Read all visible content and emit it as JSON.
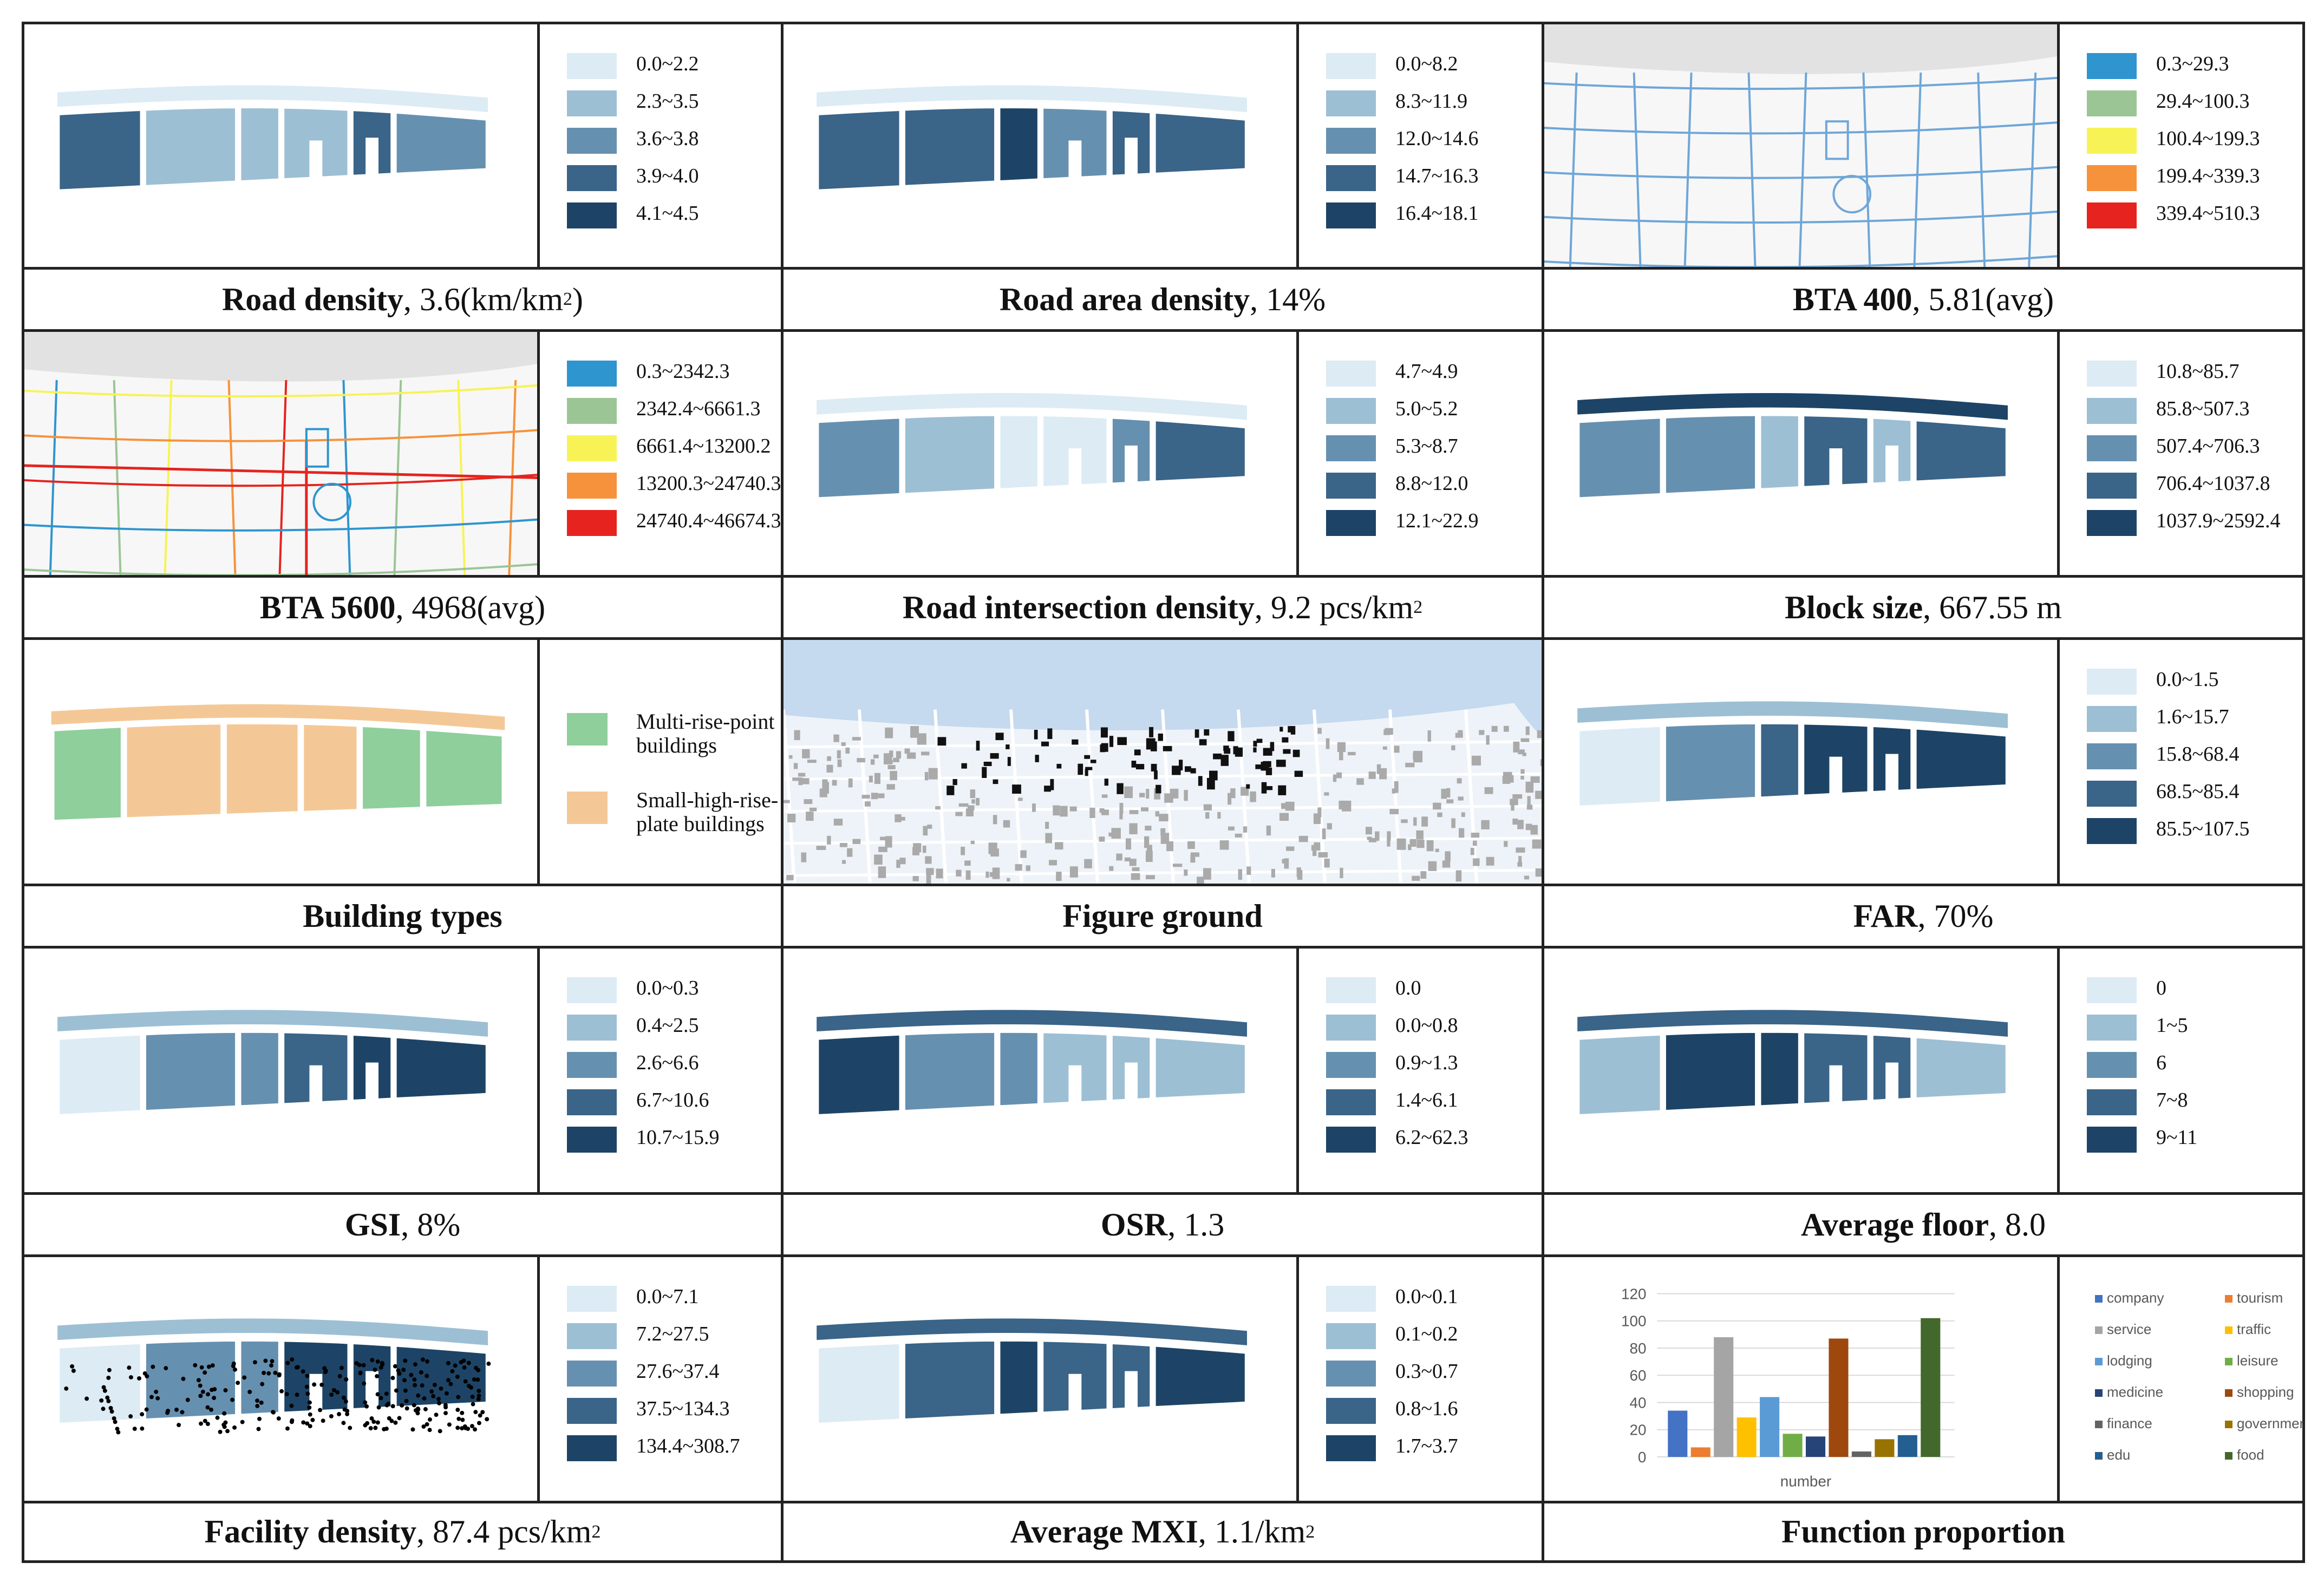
{
  "colors": {
    "blue1": "#dcebf4",
    "blue2": "#9cbfd4",
    "blue3": "#6690b0",
    "blue4": "#3a6488",
    "blue5": "#1d4466",
    "bta1": "#2f95cf",
    "bta2": "#9cc596",
    "bta3": "#f7f356",
    "bta4": "#f7923c",
    "bta5": "#e6231e",
    "green": "#8ecf9b",
    "orange": "#f4c896"
  },
  "panels": [
    {
      "id": "road-density",
      "title": "Road density",
      "value": ", 3.6(km/km",
      "sup": "2",
      "after": ")",
      "legend": [
        "0.0~2.2",
        "2.3~3.5",
        "3.6~3.8",
        "3.9~4.0",
        "4.1~4.5"
      ],
      "palette": "blue"
    },
    {
      "id": "road-area-density",
      "title": "Road area density",
      "value": ", 14%",
      "sup": "",
      "after": "",
      "legend": [
        "0.0~8.2",
        "8.3~11.9",
        "12.0~14.6",
        "14.7~16.3",
        "16.4~18.1"
      ],
      "palette": "blue"
    },
    {
      "id": "bta-400",
      "title": "BTA 400",
      "value": ", 5.81(avg)",
      "sup": "",
      "after": "",
      "legend": [
        "0.3~29.3",
        "29.4~100.3",
        "100.4~199.3",
        "199.4~339.3",
        "339.4~510.3"
      ],
      "palette": "bta"
    },
    {
      "id": "bta-5600",
      "title": "BTA 5600",
      "value": ", 4968(avg)",
      "sup": "",
      "after": "",
      "legend": [
        "0.3~2342.3",
        "2342.4~6661.3",
        "6661.4~13200.2",
        "13200.3~24740.3",
        "24740.4~46674.3"
      ],
      "palette": "bta"
    },
    {
      "id": "road-intersection-density",
      "title": "Road intersection density",
      "value": ", 9.2 pcs/km",
      "sup": "2",
      "after": "",
      "legend": [
        "4.7~4.9",
        "5.0~5.2",
        "5.3~8.7",
        "8.8~12.0",
        "12.1~22.9"
      ],
      "palette": "blue"
    },
    {
      "id": "block-size",
      "title": "Block size",
      "value": ", 667.55 m",
      "sup": "",
      "after": "",
      "legend": [
        "10.8~85.7",
        "85.8~507.3",
        "507.4~706.3",
        "706.4~1037.8",
        "1037.9~2592.4"
      ],
      "palette": "blue"
    },
    {
      "id": "building-types",
      "title": "Building types",
      "value": "",
      "sup": "",
      "after": "",
      "legend": [
        "Multi-rise-point buildings",
        "Small-high-rise-plate buildings"
      ],
      "palette": "types"
    },
    {
      "id": "figure-ground",
      "title": "Figure ground",
      "value": "",
      "sup": "",
      "after": "",
      "legend": [],
      "palette": "none"
    },
    {
      "id": "far",
      "title": "FAR",
      "value": ", 70%",
      "sup": "",
      "after": "",
      "legend": [
        "0.0~1.5",
        "1.6~15.7",
        "15.8~68.4",
        "68.5~85.4",
        "85.5~107.5"
      ],
      "palette": "blue"
    },
    {
      "id": "gsi",
      "title": "GSI",
      "value": ", 8%",
      "sup": "",
      "after": "",
      "legend": [
        "0.0~0.3",
        "0.4~2.5",
        "2.6~6.6",
        "6.7~10.6",
        "10.7~15.9"
      ],
      "palette": "blue"
    },
    {
      "id": "osr",
      "title": "OSR",
      "value": ", 1.3",
      "sup": "",
      "after": "",
      "legend": [
        "0.0",
        "0.0~0.8",
        "0.9~1.3",
        "1.4~6.1",
        "6.2~62.3"
      ],
      "palette": "blue"
    },
    {
      "id": "average-floor",
      "title": "Average floor",
      "value": ", 8.0",
      "sup": "",
      "after": "",
      "legend": [
        "0",
        "1~5",
        "6",
        "7~8",
        "9~11"
      ],
      "palette": "blue"
    },
    {
      "id": "facility-density",
      "title": "Facility density",
      "value": ", 87.4 pcs/km",
      "sup": "2",
      "after": "",
      "legend": [
        "0.0~7.1",
        "7.2~27.5",
        "27.6~37.4",
        "37.5~134.3",
        "134.4~308.7"
      ],
      "palette": "blue"
    },
    {
      "id": "average-mxi",
      "title": "Average MXI",
      "value": ", 1.1/km",
      "sup": "2",
      "after": "",
      "legend": [
        "0.0~0.1",
        "0.1~0.2",
        "0.3~0.7",
        "0.8~1.6",
        "1.7~3.7"
      ],
      "palette": "blue"
    },
    {
      "id": "function-proportion",
      "title": "Function proportion",
      "value": "",
      "sup": "",
      "after": "",
      "legend": [],
      "palette": "none"
    }
  ],
  "chart_data": {
    "type": "bar",
    "title": "",
    "xlabel": "number",
    "ylabel": "",
    "ylim": [
      0,
      120
    ],
    "yticks": [
      0,
      20,
      40,
      60,
      80,
      100,
      120
    ],
    "legend_placement": "right",
    "series": [
      {
        "name": "company",
        "values": [
          34
        ],
        "color": "#4472c4"
      },
      {
        "name": "tourism",
        "values": [
          7
        ],
        "color": "#ed7d31"
      },
      {
        "name": "service",
        "values": [
          88
        ],
        "color": "#a5a5a5"
      },
      {
        "name": "traffic",
        "values": [
          29
        ],
        "color": "#ffc000"
      },
      {
        "name": "lodging",
        "values": [
          44
        ],
        "color": "#5b9bd5"
      },
      {
        "name": "leisure",
        "values": [
          17
        ],
        "color": "#70ad47"
      },
      {
        "name": "medicine",
        "values": [
          15
        ],
        "color": "#264478"
      },
      {
        "name": "shopping",
        "values": [
          87
        ],
        "color": "#9e480e"
      },
      {
        "name": "finance",
        "values": [
          4
        ],
        "color": "#636363"
      },
      {
        "name": "government",
        "values": [
          13
        ],
        "color": "#997300"
      },
      {
        "name": "edu",
        "values": [
          16
        ],
        "color": "#255e91"
      },
      {
        "name": "food",
        "values": [
          102
        ],
        "color": "#43682b"
      }
    ]
  }
}
